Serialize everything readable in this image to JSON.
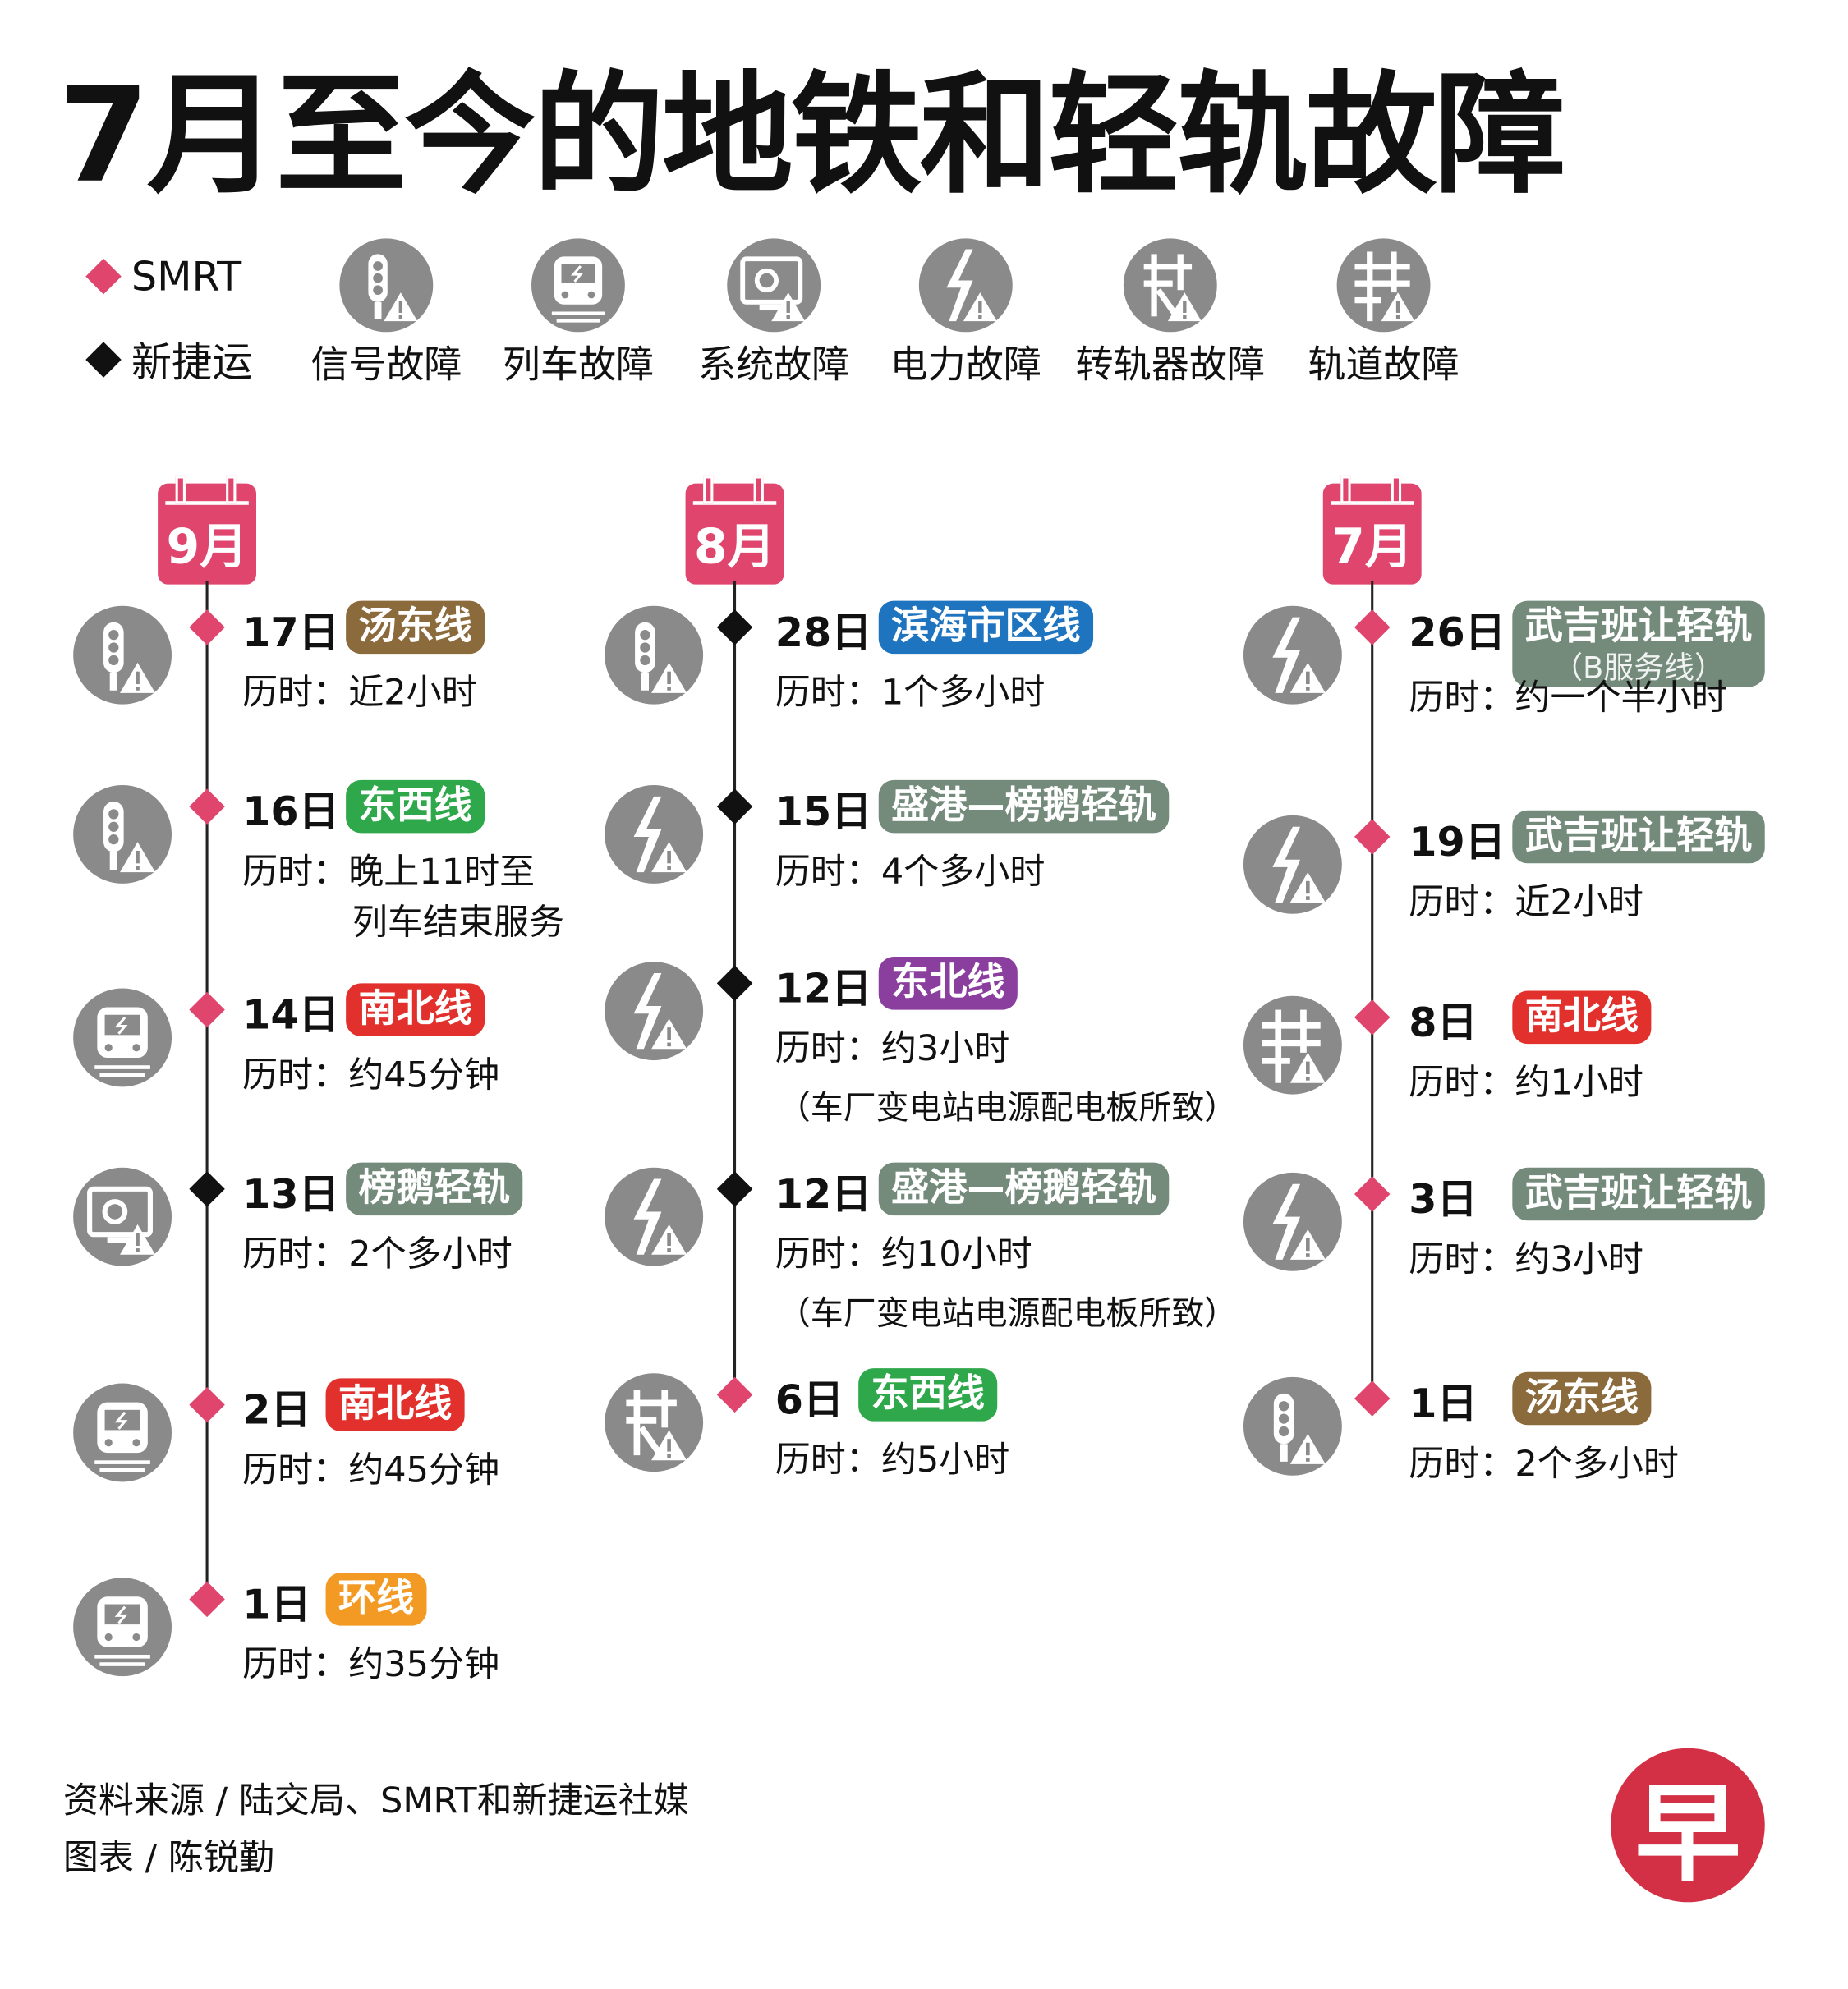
{
  "title": "7月至今的地铁和轻轨故障",
  "colors": {
    "smrt": "#e0456e",
    "sbs": "#111111",
    "icon_gray": "#8a8a8a"
  },
  "legend": {
    "operators": [
      {
        "label": "SMRT",
        "color": "#e0456e"
      },
      {
        "label": "新捷运",
        "color": "#111111"
      }
    ],
    "fault_types": [
      {
        "icon": "signal",
        "label": "信号故障"
      },
      {
        "icon": "train",
        "label": "列车故障"
      },
      {
        "icon": "system",
        "label": "系统故障"
      },
      {
        "icon": "power",
        "label": "电力故障"
      },
      {
        "icon": "switch",
        "label": "转轨器故障"
      },
      {
        "icon": "track",
        "label": "轨道故障"
      }
    ]
  },
  "duration_prefix": "历时：",
  "months": [
    {
      "month": "9月",
      "entries": [
        {
          "day": "17日",
          "line": "汤东线",
          "line_color": "#8b6a3c",
          "operator": "SMRT",
          "icon": "signal",
          "duration": "近2小时"
        },
        {
          "day": "16日",
          "line": "东西线",
          "line_color": "#2ea84a",
          "operator": "SMRT",
          "icon": "signal",
          "duration": "晚上11时至",
          "duration_2": "列车结束服务"
        },
        {
          "day": "14日",
          "line": "南北线",
          "line_color": "#e2312d",
          "operator": "SMRT",
          "icon": "train",
          "duration": "约45分钟"
        },
        {
          "day": "13日",
          "line": "榜鹅轻轨",
          "line_color": "#748b7c",
          "operator": "新捷运",
          "icon": "system",
          "duration": "2个多小时"
        },
        {
          "day": "2日",
          "line": "南北线",
          "line_color": "#e2312d",
          "operator": "SMRT",
          "icon": "train",
          "duration": "约45分钟"
        },
        {
          "day": "1日",
          "line": "环线",
          "line_color": "#f39a25",
          "operator": "SMRT",
          "icon": "train",
          "duration": "约35分钟"
        }
      ]
    },
    {
      "month": "8月",
      "entries": [
        {
          "day": "28日",
          "line": "滨海市区线",
          "line_color": "#1f74c0",
          "operator": "新捷运",
          "icon": "signal",
          "duration": "1个多小时"
        },
        {
          "day": "15日",
          "line": "盛港—榜鹅轻轨",
          "line_color": "#748b7c",
          "operator": "新捷运",
          "icon": "power",
          "duration": "4个多小时"
        },
        {
          "day": "12日",
          "line": "东北线",
          "line_color": "#8a3f9e",
          "operator": "新捷运",
          "icon": "power",
          "duration": "约3小时",
          "note": "（车厂变电站电源配电板所致）"
        },
        {
          "day": "12日",
          "line": "盛港—榜鹅轻轨",
          "line_color": "#748b7c",
          "operator": "新捷运",
          "icon": "power",
          "duration": "约10小时",
          "note": "（车厂变电站电源配电板所致）"
        },
        {
          "day": "6日",
          "line": "东西线",
          "line_color": "#2ea84a",
          "operator": "SMRT",
          "icon": "switch",
          "duration": "约5小时"
        }
      ]
    },
    {
      "month": "7月",
      "entries": [
        {
          "day": "26日",
          "line": "武吉班让轻轨",
          "line_sub": "（B服务线）",
          "line_color": "#748b7c",
          "operator": "SMRT",
          "icon": "power",
          "duration": "约一个半小时"
        },
        {
          "day": "19日",
          "line": "武吉班让轻轨",
          "line_color": "#748b7c",
          "operator": "SMRT",
          "icon": "power",
          "duration": "近2小时"
        },
        {
          "day": "8日",
          "line": "南北线",
          "line_color": "#e2312d",
          "operator": "SMRT",
          "icon": "track",
          "duration": "约1小时"
        },
        {
          "day": "3日",
          "line": "武吉班让轻轨",
          "line_color": "#748b7c",
          "operator": "SMRT",
          "icon": "power",
          "duration": "约3小时"
        },
        {
          "day": "1日",
          "line": "汤东线",
          "line_color": "#8b6a3c",
          "operator": "SMRT",
          "icon": "signal",
          "duration": "2个多小时"
        }
      ]
    }
  ],
  "footer": {
    "source": "资料来源 / 陆交局、SMRT和新捷运社媒",
    "graphic": "图表 / 陈锐勤"
  },
  "logo_text": "早"
}
